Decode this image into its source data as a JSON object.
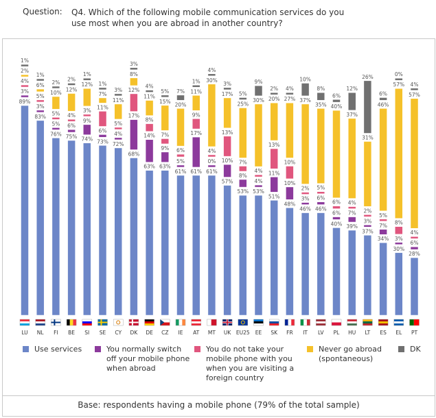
{
  "question": {
    "label": "Question:",
    "text": "Q4. Which of the following mobile communication services do you use most when you are abroad in another country?"
  },
  "legend": [
    {
      "label": "Use services",
      "color": "#6c86c8"
    },
    {
      "label": "You normally switch off your mobile phone when abroad",
      "color": "#8c3a9c"
    },
    {
      "label": "You do not take your mobile phone with you when you are visiting a foreign country",
      "color": "#e0567e"
    },
    {
      "label": "Never go abroad (spontaneous)",
      "color": "#f5c12a"
    },
    {
      "label": "DK",
      "color": "#707070"
    }
  ],
  "footer": {
    "base": "Base: respondents having a mobile phone (79% of the total sample)"
  },
  "chart_data": {
    "type": "bar",
    "title": "",
    "xlabel": "",
    "ylabel": "",
    "categories": [
      "LU",
      "NL",
      "FI",
      "BE",
      "SI",
      "SE",
      "CY",
      "DK",
      "DE",
      "CZ",
      "IE",
      "AT",
      "MT",
      "UK",
      "EU25",
      "EE",
      "SK",
      "FR",
      "IT",
      "LV",
      "PL",
      "HU",
      "LT",
      "ES",
      "EL",
      "PT"
    ],
    "series": [
      {
        "name": "Use services",
        "color": "#6c86c8",
        "values": [
          89,
          83,
          76,
          75,
          74,
          73,
          72,
          68,
          63,
          63,
          61,
          61,
          61,
          57,
          53,
          53,
          51,
          48,
          46,
          46,
          40,
          39,
          37,
          34,
          30,
          28
        ]
      },
      {
        "name": "You normally switch off your mobile phone when abroad",
        "color": "#8c3a9c",
        "values": [
          3,
          3,
          5,
          6,
          9,
          6,
          4,
          17,
          14,
          9,
          5,
          17,
          0,
          10,
          8,
          4,
          11,
          10,
          3,
          6,
          6,
          7,
          3,
          7,
          3,
          6
        ]
      },
      {
        "name": "You do not take your mobile phone with you when you are visiting a foreign country",
        "color": "#e0567e",
        "values": [
          4,
          5,
          5,
          4,
          3,
          11,
          5,
          12,
          8,
          7,
          6,
          9,
          4,
          13,
          7,
          4,
          13,
          10,
          2,
          5,
          6,
          4,
          2,
          5,
          8,
          4
        ]
      },
      {
        "name": "Never go abroad (spontaneous)",
        "color": "#f5c12a",
        "values": [
          2,
          6,
          10,
          12,
          12,
          7,
          11,
          8,
          11,
          15,
          20,
          11,
          30,
          17,
          25,
          30,
          20,
          27,
          37,
          35,
          40,
          37,
          31,
          46,
          57,
          57
        ]
      },
      {
        "name": "DK",
        "color": "#707070",
        "values": [
          1,
          1,
          2,
          2,
          1,
          1,
          3,
          3,
          4,
          5,
          7,
          1,
          4,
          3,
          5,
          9,
          2,
          4,
          10,
          8,
          6,
          12,
          26,
          6,
          0,
          4
        ]
      }
    ]
  },
  "flags": {
    "LU": {
      "type": "h",
      "colors": [
        "#ef3340",
        "#ffffff",
        "#00a3e0"
      ]
    },
    "NL": {
      "type": "h",
      "colors": [
        "#ae1c28",
        "#ffffff",
        "#21468b"
      ]
    },
    "FI": {
      "type": "cross",
      "colors": [
        "#ffffff",
        "#003580"
      ]
    },
    "BE": {
      "type": "v",
      "colors": [
        "#000000",
        "#fdda24",
        "#ef3340"
      ]
    },
    "SI": {
      "type": "h",
      "colors": [
        "#ffffff",
        "#0000ff",
        "#ff0000"
      ]
    },
    "SE": {
      "type": "cross",
      "colors": [
        "#006aa7",
        "#fecc00"
      ]
    },
    "CY": {
      "type": "plain",
      "colors": [
        "#ffffff",
        "#d57800"
      ]
    },
    "DK": {
      "type": "cross",
      "colors": [
        "#c8102e",
        "#ffffff"
      ]
    },
    "DE": {
      "type": "h",
      "colors": [
        "#000000",
        "#dd0000",
        "#ffce00"
      ]
    },
    "CZ": {
      "type": "cz",
      "colors": [
        "#ffffff",
        "#d7141a",
        "#11457e"
      ]
    },
    "IE": {
      "type": "v",
      "colors": [
        "#169b62",
        "#ffffff",
        "#ff883e"
      ]
    },
    "AT": {
      "type": "h",
      "colors": [
        "#ed2939",
        "#ffffff",
        "#ed2939"
      ]
    },
    "MT": {
      "type": "v2",
      "colors": [
        "#ffffff",
        "#cf142b"
      ]
    },
    "UK": {
      "type": "uk",
      "colors": [
        "#012169",
        "#ffffff",
        "#c8102e"
      ]
    },
    "EU25": {
      "type": "plain",
      "colors": [
        "#003399",
        "#ffcc00"
      ]
    },
    "EE": {
      "type": "h",
      "colors": [
        "#0072ce",
        "#000000",
        "#ffffff"
      ]
    },
    "SK": {
      "type": "h",
      "colors": [
        "#ffffff",
        "#0b4ea2",
        "#ee1c25"
      ]
    },
    "FR": {
      "type": "v",
      "colors": [
        "#002395",
        "#ffffff",
        "#ed2939"
      ]
    },
    "IT": {
      "type": "v",
      "colors": [
        "#009246",
        "#ffffff",
        "#ce2b37"
      ]
    },
    "LV": {
      "type": "h",
      "colors": [
        "#9e3039",
        "#ffffff",
        "#9e3039"
      ]
    },
    "PL": {
      "type": "h2",
      "colors": [
        "#ffffff",
        "#dc143c"
      ]
    },
    "HU": {
      "type": "h",
      "colors": [
        "#ce2939",
        "#ffffff",
        "#477050"
      ]
    },
    "LT": {
      "type": "h",
      "colors": [
        "#fdb913",
        "#006a44",
        "#c1272d"
      ]
    },
    "ES": {
      "type": "h",
      "colors": [
        "#aa151b",
        "#f1bf00",
        "#aa151b"
      ]
    },
    "EL": {
      "type": "h",
      "colors": [
        "#0d5eaf",
        "#ffffff",
        "#0d5eaf"
      ]
    },
    "PT": {
      "type": "v2",
      "colors": [
        "#006600",
        "#ff0000"
      ]
    }
  }
}
